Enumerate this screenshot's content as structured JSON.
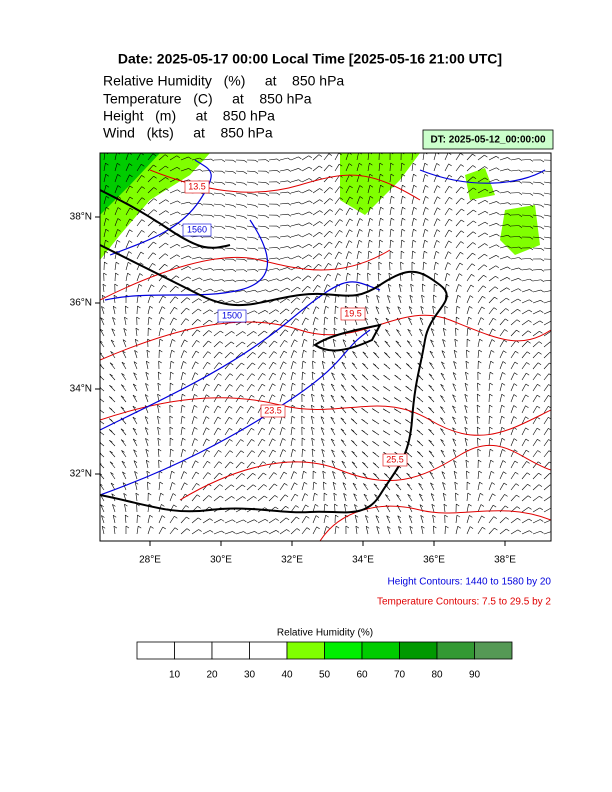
{
  "header": {
    "title": "Date: 2025-05-17  00:00 Local Time [2025-05-16  21:00 UTC]",
    "lines": [
      "Relative Humidity   (%)     at    850 hPa",
      "Temperature   (C)     at    850 hPa",
      "Height   (m)     at    850 hPa",
      "Wind   (kts)     at    850 hPa"
    ],
    "dt": "DT: 2025-05-12_00:00:00"
  },
  "map": {
    "lat_labels": [
      "38°N",
      "36°N",
      "34°N",
      "32°N"
    ],
    "lon_labels": [
      "28°E",
      "30°E",
      "32°E",
      "34°E",
      "36°E",
      "38°E"
    ],
    "height_labels": [
      "1560",
      "1500"
    ],
    "temperature_labels": [
      "13.5",
      "19.5",
      "23.5",
      "25.5"
    ]
  },
  "footer": {
    "height_note": "Height Contours: 1440 to 1580 by 20",
    "temperature_note": "Temperature Contours: 7.5 to 29.5 by 2"
  },
  "colorbar": {
    "title": "Relative Humidity  (%)",
    "ticks": [
      10,
      20,
      30,
      40,
      50,
      60,
      70,
      80,
      90
    ],
    "colors": [
      "#ffffff",
      "#ffffff",
      "#ffffff",
      "#ffffff",
      "#80ff00",
      "#00ee00",
      "#00cc00",
      "#009900",
      "#339933",
      "#559955"
    ]
  }
}
